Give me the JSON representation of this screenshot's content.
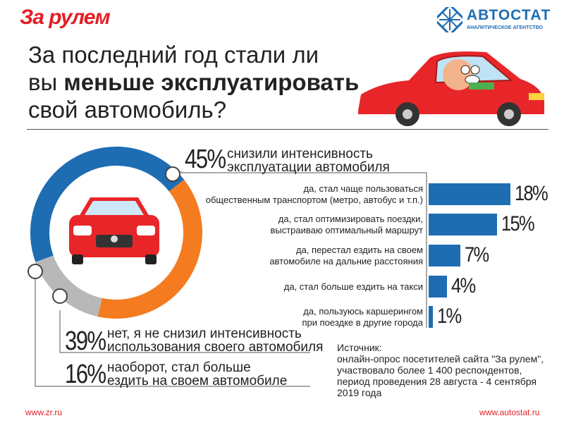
{
  "header": {
    "brand_left": "За рулем",
    "brand_right": "АВТОСТАТ",
    "brand_right_sub": "АНАЛИТИЧЕСКОЕ АГЕНТСТВО"
  },
  "title": {
    "line1": "За последний год стали ли",
    "line2_pre": "вы ",
    "line2_bold": "меньше эксплуатировать",
    "line3": "свой автомобиль?"
  },
  "chart_data": [
    {
      "type": "pie",
      "categories": [
        "снизили интенсивность эксплуатации автомобиля",
        "нет, я не снизил интенсивность использования своего автомобиля",
        "наоборот, стал больше ездить на своем автомобиле"
      ],
      "values": [
        45,
        39,
        16
      ],
      "value_labels": [
        "45%",
        "39%",
        "16%"
      ],
      "colors": [
        "#1e6db3",
        "#f47b20",
        "#b8b8b8"
      ]
    },
    {
      "type": "bar",
      "categories": [
        "да, стал чаще пользоваться общественным транспортом (метро, автобус и т.п.)",
        "да, стал оптимизировать поездки, выстраиваю оптимальный маршрут",
        "да, перестал ездить на своем автомобиле на дальние расстояния",
        "да, стал больше ездить на такси",
        "да, пользуюсь каршерингом при поездке в другие города"
      ],
      "values": [
        18,
        15,
        7,
        4,
        1
      ],
      "value_labels": [
        "18%",
        "15%",
        "7%",
        "4%",
        "1%"
      ],
      "color": "#1e6db3"
    }
  ],
  "donut_labels": {
    "seg1_line1": "снизили интенсивность",
    "seg1_line2": "эксплуатации автомобиля",
    "seg2_line1": "нет, я не снизил интенсивность",
    "seg2_line2": "использования своего автомобиля",
    "seg3_line1": "наоборот, стал больше",
    "seg3_line2": "ездить на своем автомобиле"
  },
  "bar_labels": [
    {
      "l1": "да, стал чаще пользоваться",
      "l2": "общественным транспортом (метро, автобус и т.п.)"
    },
    {
      "l1": "да, стал оптимизировать поездки,",
      "l2": "выстраиваю оптимальный маршрут"
    },
    {
      "l1": "да, перестал ездить на своем",
      "l2": "автомобиле на дальние расстояния"
    },
    {
      "l1": "да, стал больше ездить на такси",
      "l2": ""
    },
    {
      "l1": "да, пользуюсь каршерингом",
      "l2": "при поездке в другие города"
    }
  ],
  "source": {
    "heading": "Источник:",
    "line1": "онлайн-опрос посетителей сайта \"За рулем\",",
    "line2": "участвовало более 1 400 респондентов,",
    "line3": "период проведения 28 августа - 4 сентября",
    "line4": "2019 года"
  },
  "footer": {
    "left": "www.zr.ru",
    "right": "www.autostat.ru"
  }
}
